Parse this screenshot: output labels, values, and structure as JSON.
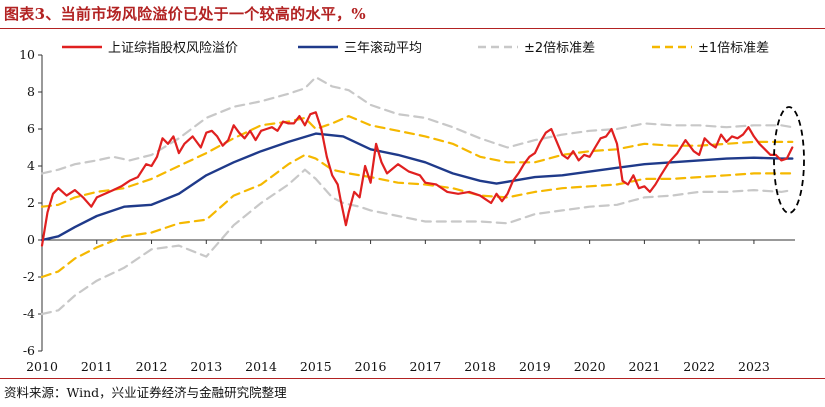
{
  "header": {
    "title": "图表3、当前市场风险溢价已处于一个较高的水平，%"
  },
  "footer": {
    "source": "资料来源：Wind，兴业证券经济与金融研究院整理"
  },
  "chart_data": {
    "type": "line",
    "title": "图表3、当前市场风险溢价已处于一个较高的水平，%",
    "xlabel": "",
    "ylabel": "",
    "xlim": [
      2010.0,
      2023.75
    ],
    "ylim": [
      -6,
      10
    ],
    "yticks": [
      -6,
      -4,
      -2,
      0,
      2,
      4,
      6,
      8,
      10
    ],
    "xticks": [
      "2010",
      "2011",
      "2012",
      "2013",
      "2014",
      "2015",
      "2016",
      "2017",
      "2018",
      "2019",
      "2020",
      "2021",
      "2022",
      "2023"
    ],
    "legend_position": "top",
    "grid": false,
    "annotation": "dashed ellipse highlighting the latest data (2023)",
    "series": [
      {
        "name": "上证综指股权风险溢价",
        "color": "#e02020",
        "style": "solid",
        "x": [
          2010.0,
          2010.1,
          2010.2,
          2010.3,
          2010.45,
          2010.6,
          2010.75,
          2010.9,
          2011.0,
          2011.15,
          2011.3,
          2011.45,
          2011.6,
          2011.75,
          2011.9,
          2012.0,
          2012.1,
          2012.2,
          2012.3,
          2012.4,
          2012.5,
          2012.6,
          2012.75,
          2012.9,
          2013.0,
          2013.1,
          2013.2,
          2013.3,
          2013.4,
          2013.5,
          2013.6,
          2013.7,
          2013.8,
          2013.9,
          2014.0,
          2014.1,
          2014.2,
          2014.3,
          2014.4,
          2014.5,
          2014.6,
          2014.7,
          2014.8,
          2014.9,
          2015.0,
          2015.1,
          2015.2,
          2015.3,
          2015.4,
          2015.45,
          2015.5,
          2015.55,
          2015.6,
          2015.7,
          2015.8,
          2015.9,
          2016.0,
          2016.1,
          2016.2,
          2016.3,
          2016.5,
          2016.7,
          2016.9,
          2017.0,
          2017.2,
          2017.4,
          2017.6,
          2017.8,
          2018.0,
          2018.1,
          2018.2,
          2018.3,
          2018.4,
          2018.5,
          2018.6,
          2018.7,
          2018.8,
          2018.9,
          2019.0,
          2019.1,
          2019.2,
          2019.3,
          2019.4,
          2019.5,
          2019.6,
          2019.7,
          2019.8,
          2019.9,
          2020.0,
          2020.1,
          2020.2,
          2020.3,
          2020.4,
          2020.5,
          2020.6,
          2020.7,
          2020.8,
          2020.9,
          2021.0,
          2021.1,
          2021.2,
          2021.3,
          2021.45,
          2021.6,
          2021.75,
          2021.9,
          2022.0,
          2022.1,
          2022.2,
          2022.3,
          2022.4,
          2022.5,
          2022.6,
          2022.7,
          2022.8,
          2022.9,
          2023.0,
          2023.1,
          2023.2,
          2023.3,
          2023.4,
          2023.5,
          2023.6,
          2023.7
        ],
        "y": [
          -0.3,
          1.5,
          2.5,
          2.8,
          2.4,
          2.7,
          2.3,
          1.8,
          2.3,
          2.5,
          2.7,
          2.9,
          3.2,
          3.4,
          4.1,
          4.0,
          4.5,
          5.5,
          5.2,
          5.6,
          4.7,
          5.2,
          5.6,
          5.0,
          5.8,
          5.9,
          5.6,
          5.1,
          5.4,
          6.2,
          5.8,
          5.5,
          5.9,
          5.4,
          5.9,
          6.0,
          6.1,
          5.9,
          6.4,
          6.3,
          6.3,
          6.7,
          6.2,
          6.8,
          6.9,
          6.0,
          4.5,
          3.5,
          3.0,
          2.2,
          1.5,
          0.8,
          1.5,
          2.6,
          2.3,
          4.0,
          3.1,
          5.2,
          4.2,
          3.6,
          4.1,
          3.7,
          3.5,
          3.1,
          3.0,
          2.6,
          2.5,
          2.6,
          2.4,
          2.2,
          2.0,
          2.5,
          2.1,
          2.5,
          3.2,
          3.6,
          4.1,
          4.5,
          4.7,
          5.3,
          5.8,
          6.0,
          5.3,
          4.6,
          4.4,
          4.8,
          4.3,
          4.6,
          4.5,
          5.0,
          5.5,
          5.6,
          6.0,
          5.2,
          3.2,
          3.0,
          3.5,
          2.8,
          2.9,
          2.6,
          3.0,
          3.5,
          4.2,
          4.7,
          5.4,
          4.8,
          4.6,
          5.5,
          5.2,
          5.0,
          5.7,
          5.3,
          5.6,
          5.5,
          5.7,
          6.1,
          5.6,
          5.2,
          4.9,
          4.6,
          4.6,
          4.3,
          4.4,
          5.0
        ]
      },
      {
        "name": "三年滚动平均",
        "color": "#1f3a8a",
        "style": "solid",
        "x": [
          2010.0,
          2010.3,
          2010.6,
          2011.0,
          2011.5,
          2012.0,
          2012.5,
          2013.0,
          2013.5,
          2014.0,
          2014.5,
          2015.0,
          2015.5,
          2016.0,
          2016.5,
          2017.0,
          2017.5,
          2018.0,
          2018.3,
          2018.6,
          2019.0,
          2019.5,
          2020.0,
          2020.5,
          2021.0,
          2021.5,
          2022.0,
          2022.5,
          2023.0,
          2023.5,
          2023.7
        ],
        "y": [
          0.0,
          0.2,
          0.7,
          1.3,
          1.8,
          1.9,
          2.5,
          3.5,
          4.2,
          4.8,
          5.3,
          5.75,
          5.6,
          4.9,
          4.6,
          4.2,
          3.6,
          3.2,
          3.05,
          3.2,
          3.4,
          3.5,
          3.7,
          3.9,
          4.1,
          4.2,
          4.3,
          4.4,
          4.45,
          4.4,
          4.4
        ]
      },
      {
        "name": "±2倍标准差",
        "color": "#c8c8c8",
        "style": "dashed",
        "x": [
          2010.0,
          2010.3,
          2010.6,
          2011.0,
          2011.3,
          2011.6,
          2012.0,
          2012.5,
          2013.0,
          2013.5,
          2014.0,
          2014.5,
          2014.8,
          2015.0,
          2015.3,
          2015.6,
          2016.0,
          2016.5,
          2017.0,
          2017.5,
          2018.0,
          2018.5,
          2019.0,
          2019.5,
          2020.0,
          2020.5,
          2021.0,
          2021.5,
          2022.0,
          2022.5,
          2023.0,
          2023.5,
          2023.7
        ],
        "y": [
          3.6,
          3.8,
          4.1,
          4.3,
          4.5,
          4.3,
          4.6,
          5.5,
          6.6,
          7.2,
          7.5,
          7.9,
          8.2,
          8.8,
          8.3,
          8.1,
          7.3,
          6.8,
          6.6,
          6.1,
          5.5,
          5.0,
          5.4,
          5.7,
          5.9,
          6.0,
          6.3,
          6.2,
          6.2,
          6.1,
          6.2,
          6.2,
          6.1
        ]
      },
      {
        "name": "±2倍标准差",
        "color": "#c8c8c8",
        "style": "dashed",
        "x": [
          2010.0,
          2010.3,
          2010.6,
          2011.0,
          2011.5,
          2012.0,
          2012.5,
          2013.0,
          2013.5,
          2014.0,
          2014.5,
          2014.8,
          2015.0,
          2015.3,
          2015.5,
          2015.8,
          2016.0,
          2016.5,
          2017.0,
          2017.5,
          2018.0,
          2018.5,
          2019.0,
          2019.5,
          2020.0,
          2020.5,
          2021.0,
          2021.5,
          2022.0,
          2022.5,
          2023.0,
          2023.5,
          2023.7
        ],
        "y": [
          -4.0,
          -3.8,
          -3.0,
          -2.2,
          -1.5,
          -0.5,
          -0.3,
          -0.9,
          0.8,
          2.0,
          3.0,
          3.8,
          3.3,
          2.3,
          2.0,
          1.8,
          1.6,
          1.3,
          1.0,
          1.0,
          1.0,
          0.9,
          1.4,
          1.6,
          1.8,
          1.9,
          2.3,
          2.4,
          2.6,
          2.6,
          2.7,
          2.6,
          2.7
        ]
      },
      {
        "name": "±1倍标准差",
        "color": "#f5b800",
        "style": "dashed",
        "x": [
          2010.0,
          2010.3,
          2010.6,
          2011.0,
          2011.5,
          2012.0,
          2012.5,
          2013.0,
          2013.5,
          2014.0,
          2014.5,
          2014.8,
          2015.0,
          2015.3,
          2015.6,
          2016.0,
          2016.5,
          2017.0,
          2017.5,
          2018.0,
          2018.5,
          2019.0,
          2019.5,
          2020.0,
          2020.5,
          2021.0,
          2021.5,
          2022.0,
          2022.5,
          2023.0,
          2023.5,
          2023.7
        ],
        "y": [
          1.8,
          1.9,
          2.3,
          2.6,
          2.8,
          3.3,
          4.0,
          4.7,
          5.5,
          6.2,
          6.4,
          6.6,
          6.0,
          6.3,
          6.7,
          6.2,
          5.9,
          5.6,
          5.2,
          4.5,
          4.2,
          4.2,
          4.6,
          4.8,
          4.9,
          5.2,
          5.1,
          5.1,
          5.2,
          5.3,
          5.3,
          5.3
        ]
      },
      {
        "name": "±1倍标准差",
        "color": "#f5b800",
        "style": "dashed",
        "x": [
          2010.0,
          2010.3,
          2010.6,
          2011.0,
          2011.5,
          2012.0,
          2012.5,
          2013.0,
          2013.5,
          2014.0,
          2014.5,
          2014.8,
          2015.0,
          2015.3,
          2015.6,
          2016.0,
          2016.5,
          2017.0,
          2017.5,
          2018.0,
          2018.5,
          2019.0,
          2019.5,
          2020.0,
          2020.5,
          2021.0,
          2021.5,
          2022.0,
          2022.5,
          2023.0,
          2023.5,
          2023.7
        ],
        "y": [
          -2.0,
          -1.7,
          -1.0,
          -0.4,
          0.2,
          0.4,
          0.9,
          1.1,
          2.4,
          3.0,
          4.1,
          4.6,
          4.4,
          3.8,
          3.6,
          3.4,
          3.1,
          3.0,
          2.8,
          2.4,
          2.3,
          2.6,
          2.8,
          2.9,
          3.0,
          3.3,
          3.3,
          3.4,
          3.5,
          3.6,
          3.6,
          3.6
        ]
      }
    ],
    "legend": [
      {
        "label": "上证综指股权风险溢价",
        "color": "#e02020",
        "style": "solid"
      },
      {
        "label": "三年滚动平均",
        "color": "#1f3a8a",
        "style": "solid"
      },
      {
        "label": "±2倍标准差",
        "color": "#c8c8c8",
        "style": "dashed"
      },
      {
        "label": "±1倍标准差",
        "color": "#f5b800",
        "style": "dashed"
      }
    ]
  }
}
